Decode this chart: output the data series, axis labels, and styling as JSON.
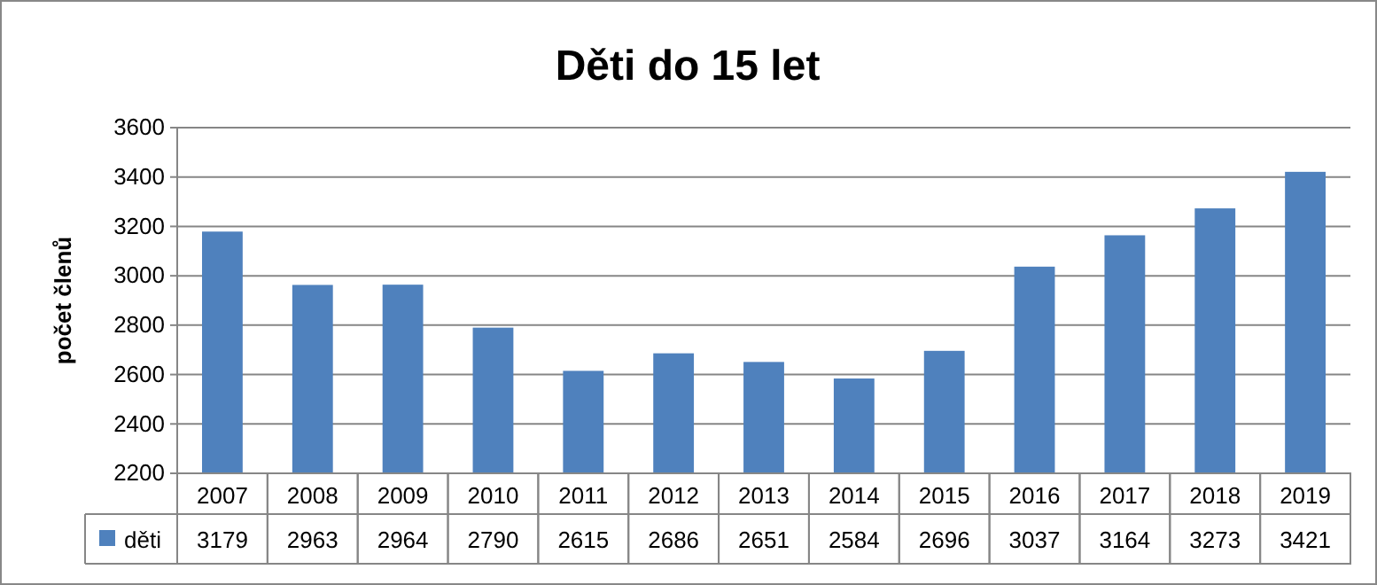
{
  "chart_data": {
    "type": "bar",
    "title": "Děti do 15 let",
    "ylabel": "počet členů",
    "categories": [
      "2007",
      "2008",
      "2009",
      "2010",
      "2011",
      "2012",
      "2013",
      "2014",
      "2015",
      "2016",
      "2017",
      "2018",
      "2019"
    ],
    "series": [
      {
        "name": "děti",
        "color": "#4f81bd",
        "values": [
          3179,
          2963,
          2964,
          2790,
          2615,
          2686,
          2651,
          2584,
          2696,
          3037,
          3164,
          3273,
          3421
        ]
      }
    ],
    "ylim": [
      2200,
      3600
    ],
    "yticks": [
      2200,
      2400,
      2600,
      2800,
      3000,
      3200,
      3400,
      3600
    ],
    "grid": "y",
    "data_labels": true,
    "legend": "bottom"
  }
}
